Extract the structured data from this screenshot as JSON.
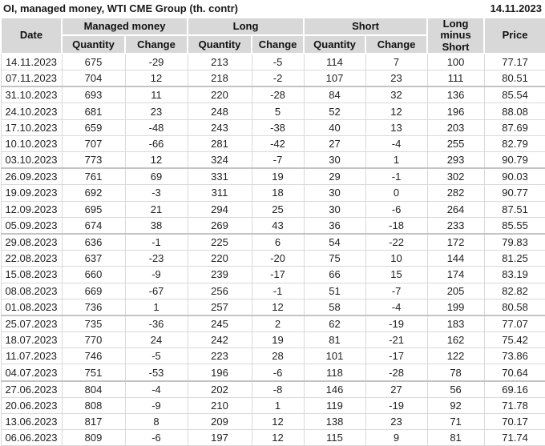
{
  "page_title": "OI, managed money, WTI CME Group (th. contr)",
  "report_date": "14.11.2023",
  "colors": {
    "positive_change": "#009900",
    "negative_change": "#d40000",
    "header_background": "#d8d8d8",
    "grid_line": "#d9d9d9"
  },
  "chart_data": {
    "type": "table",
    "title": "OI, managed money, WTI CME Group (th. contr)",
    "header": {
      "date": "Date",
      "managed_money": "Managed money",
      "long": "Long",
      "short": "Short",
      "quantity": "Quantity",
      "change": "Change",
      "long_minus_short": "Long minus Short",
      "price": "Price"
    },
    "col_keys": [
      "date",
      "mm-quantity",
      "mm-change",
      "long-quantity",
      "long-change",
      "short-quantity",
      "short-change",
      "long-minus-short",
      "price"
    ],
    "change_column_indexes": [
      2,
      4,
      6
    ],
    "rows": [
      [
        "14.11.2023",
        675,
        -29,
        213,
        -5,
        114,
        7,
        100,
        "77.17"
      ],
      [
        "07.11.2023",
        704,
        12,
        218,
        -2,
        107,
        23,
        111,
        "80.51"
      ],
      [
        "31.10.2023",
        693,
        11,
        220,
        -28,
        84,
        32,
        136,
        "85.54"
      ],
      [
        "24.10.2023",
        681,
        23,
        248,
        5,
        52,
        12,
        196,
        "88.08"
      ],
      [
        "17.10.2023",
        659,
        -48,
        243,
        -38,
        40,
        13,
        203,
        "87.69"
      ],
      [
        "10.10.2023",
        707,
        -66,
        281,
        -42,
        27,
        -4,
        255,
        "82.79"
      ],
      [
        "03.10.2023",
        773,
        12,
        324,
        -7,
        30,
        1,
        293,
        "90.79"
      ],
      [
        "26.09.2023",
        761,
        69,
        331,
        19,
        29,
        -1,
        302,
        "90.03"
      ],
      [
        "19.09.2023",
        692,
        -3,
        311,
        18,
        30,
        0,
        282,
        "90.77"
      ],
      [
        "12.09.2023",
        695,
        21,
        294,
        25,
        30,
        -6,
        264,
        "87.51"
      ],
      [
        "05.09.2023",
        674,
        38,
        269,
        43,
        36,
        -18,
        233,
        "85.55"
      ],
      [
        "29.08.2023",
        636,
        -1,
        225,
        6,
        54,
        -22,
        172,
        "79.83"
      ],
      [
        "22.08.2023",
        637,
        -23,
        220,
        -20,
        75,
        10,
        144,
        "81.25"
      ],
      [
        "15.08.2023",
        660,
        -9,
        239,
        -17,
        66,
        15,
        174,
        "83.19"
      ],
      [
        "08.08.2023",
        669,
        -67,
        256,
        -1,
        51,
        -7,
        205,
        "82.82"
      ],
      [
        "01.08.2023",
        736,
        1,
        257,
        12,
        58,
        -4,
        199,
        "80.58"
      ],
      [
        "25.07.2023",
        735,
        -36,
        245,
        2,
        62,
        -19,
        183,
        "77.07"
      ],
      [
        "18.07.2023",
        770,
        24,
        242,
        19,
        81,
        -21,
        162,
        "75.42"
      ],
      [
        "11.07.2023",
        746,
        -5,
        223,
        28,
        101,
        -17,
        122,
        "73.86"
      ],
      [
        "04.07.2023",
        751,
        -53,
        196,
        -6,
        118,
        -28,
        78,
        "70.64"
      ],
      [
        "27.06.2023",
        804,
        -4,
        202,
        -8,
        146,
        27,
        56,
        "69.16"
      ],
      [
        "20.06.2023",
        808,
        -9,
        210,
        1,
        119,
        -19,
        92,
        "71.78"
      ],
      [
        "13.06.2023",
        817,
        8,
        209,
        12,
        138,
        23,
        71,
        "70.17"
      ],
      [
        "06.06.2023",
        809,
        -6,
        197,
        12,
        115,
        9,
        81,
        "71.74"
      ]
    ]
  }
}
